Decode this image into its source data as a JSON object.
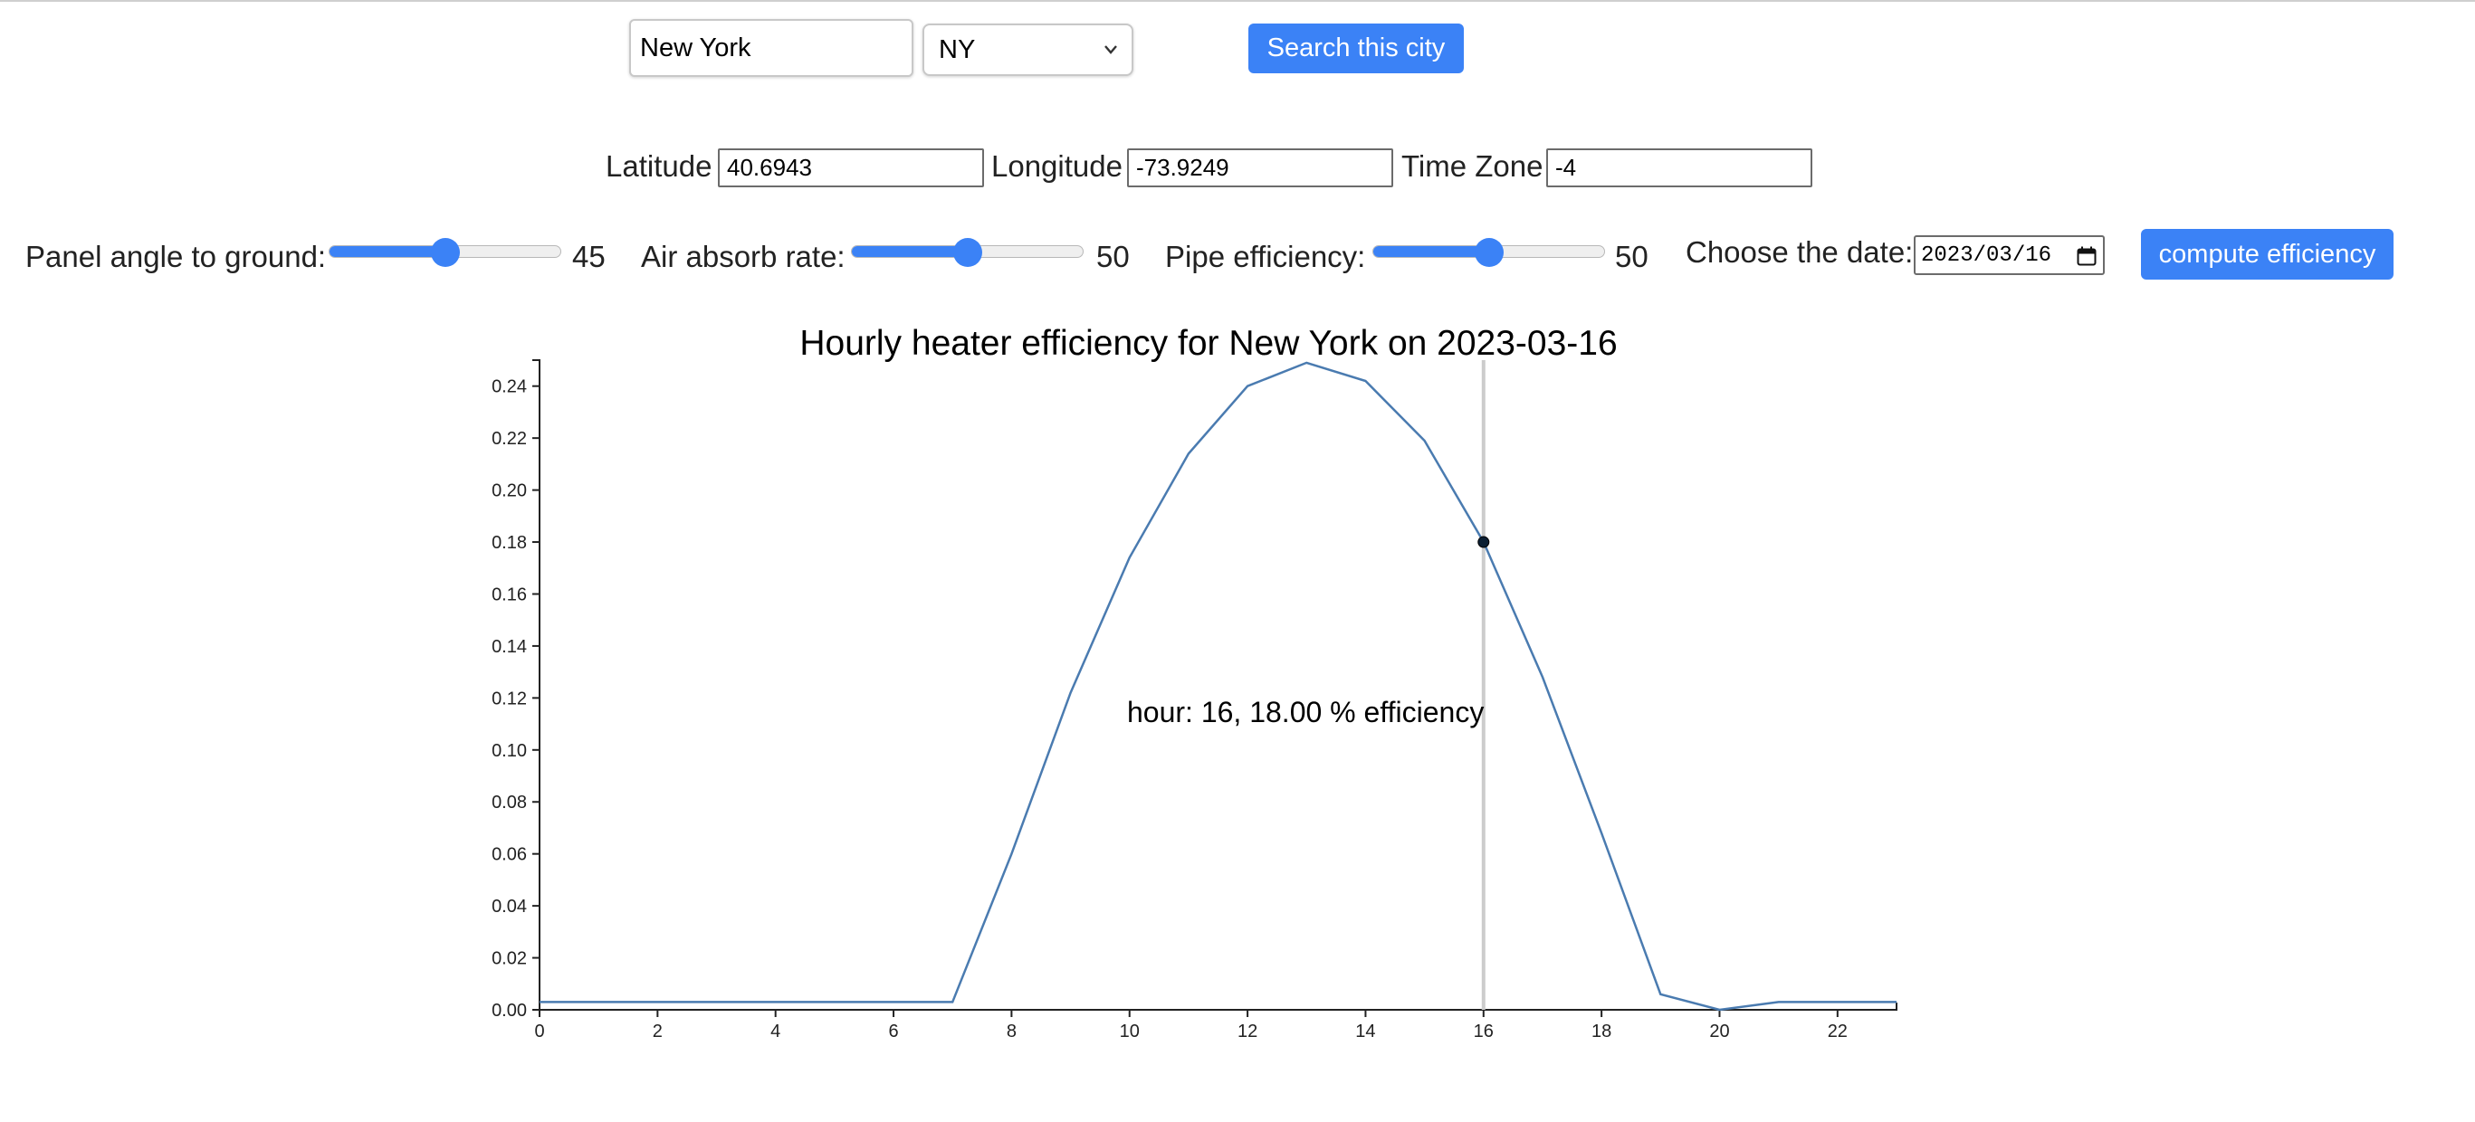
{
  "search": {
    "city_value": "New York",
    "state_selected": "NY",
    "search_button": "Search this city"
  },
  "location": {
    "latitude_label": "Latitude",
    "latitude_value": "40.6943",
    "longitude_label": "Longitude",
    "longitude_value": "-73.9249",
    "timezone_label": "Time Zone",
    "timezone_value": "-4"
  },
  "controls": {
    "panel_angle_label": "Panel angle to ground:",
    "panel_angle_value": "45",
    "panel_angle_fraction": 0.5,
    "air_absorb_label": "Air absorb rate:",
    "air_absorb_value": "50",
    "air_absorb_fraction": 0.5,
    "pipe_efficiency_label": "Pipe efficiency:",
    "pipe_efficiency_value": "50",
    "pipe_efficiency_fraction": 0.5,
    "date_label": "Choose the date:",
    "date_value": "2023/03/16",
    "compute_button": "compute efficiency"
  },
  "colors": {
    "accent": "#3b82f6",
    "line": "#4a7bb0",
    "crosshair": "#cccccc",
    "marker": "#0b1f33"
  },
  "chart_data": {
    "type": "line",
    "title": "Hourly heater efficiency for New York on 2023-03-16",
    "xlabel": "",
    "ylabel": "",
    "x": [
      0,
      1,
      2,
      3,
      4,
      5,
      6,
      7,
      8,
      9,
      10,
      11,
      12,
      13,
      14,
      15,
      16,
      17,
      18,
      19,
      20,
      21,
      22,
      23
    ],
    "series": [
      {
        "values": [
          0.003,
          0.003,
          0.003,
          0.003,
          0.003,
          0.003,
          0.003,
          0.003,
          0.06,
          0.122,
          0.174,
          0.214,
          0.24,
          0.249,
          0.242,
          0.219,
          0.18,
          0.128,
          0.068,
          0.006,
          0.0,
          0.003,
          0.003,
          0.003
        ]
      }
    ],
    "xlim": [
      0,
      23
    ],
    "ylim": [
      0,
      0.25
    ],
    "xticks": [
      0,
      2,
      4,
      6,
      8,
      10,
      12,
      14,
      16,
      18,
      20,
      22
    ],
    "yticks": [
      0.0,
      0.02,
      0.04,
      0.06,
      0.08,
      0.1,
      0.12,
      0.14,
      0.16,
      0.18,
      0.2,
      0.22,
      0.24
    ],
    "highlight": {
      "hour": 16,
      "value": 0.18
    },
    "tooltip": "hour: 16, 18.00 % efficiency",
    "grid": false,
    "legend": "none"
  }
}
